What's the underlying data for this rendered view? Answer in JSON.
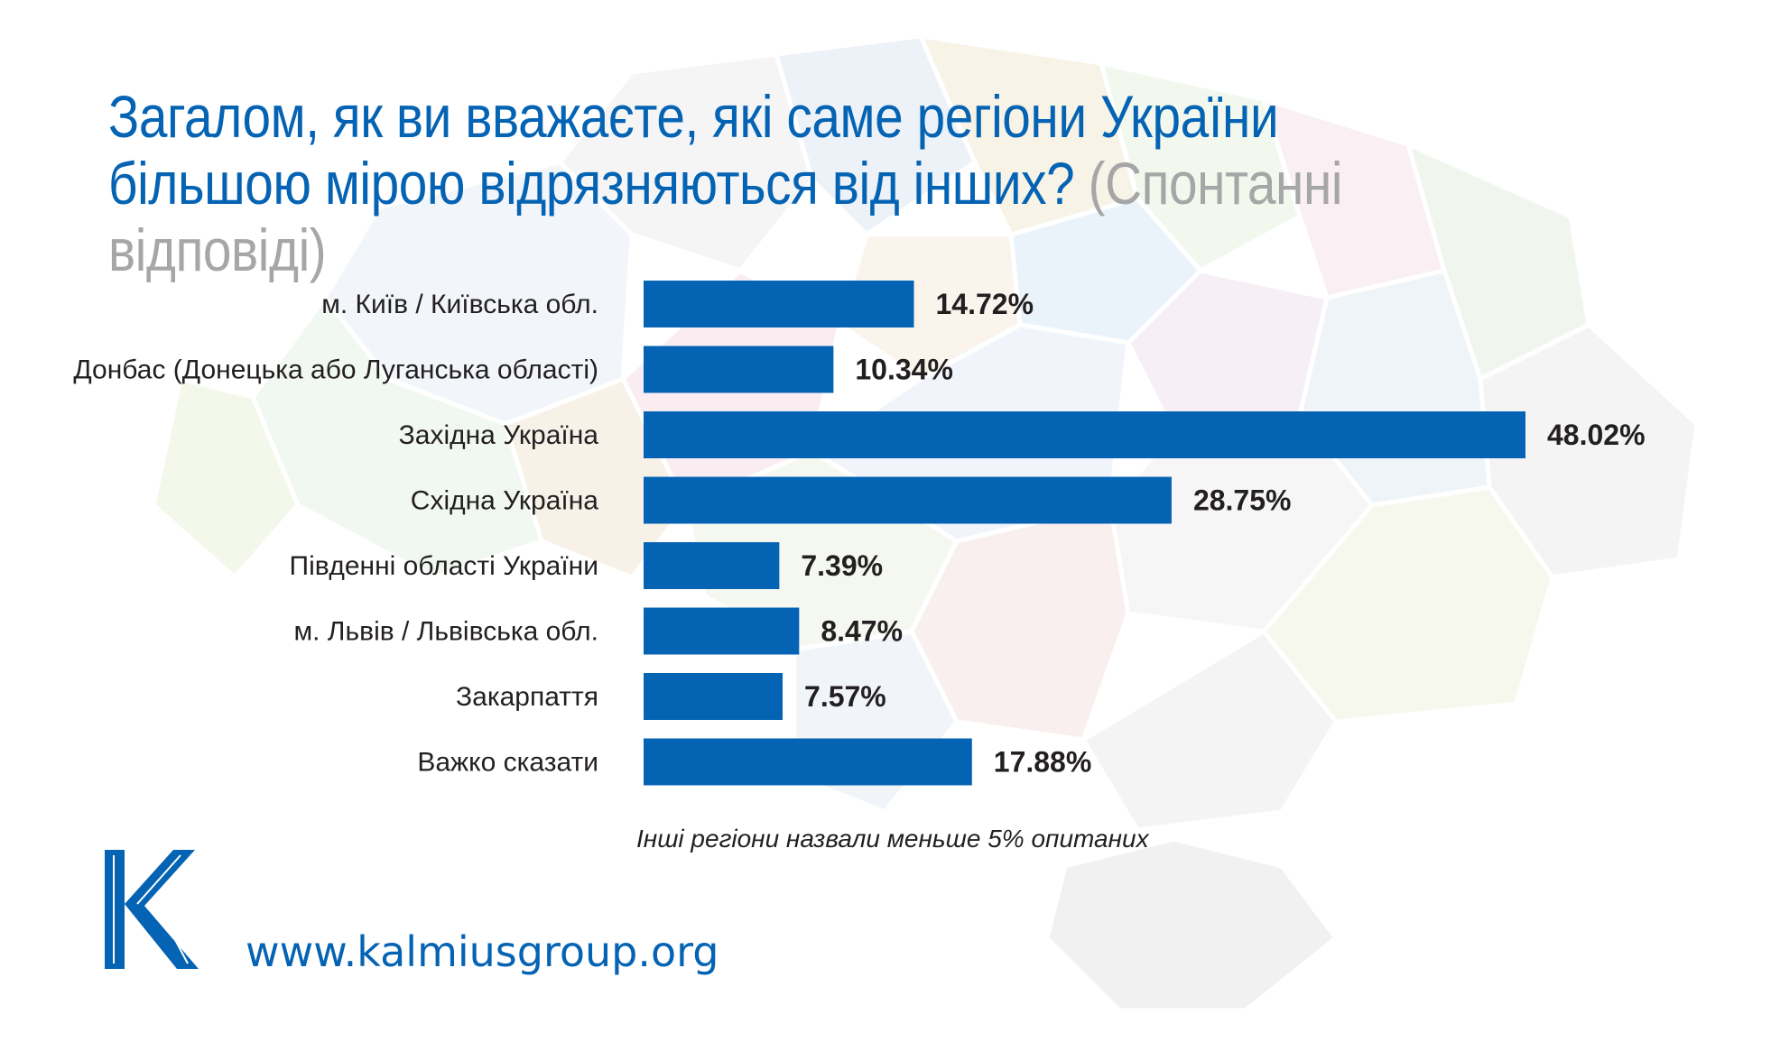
{
  "title": "Загалом, як ви вважаєте, які саме регіони України більшою мірою відрязняються від інших?",
  "subtitle": "(Спонтанні відповіді)",
  "chart_data": {
    "type": "bar",
    "orientation": "horizontal",
    "categories": [
      "м. Київ / Київська обл.",
      "Донбас (Донецька або Луганська області)",
      "Західна Україна",
      "Східна Україна",
      "Південні області України",
      "м. Львів / Львівська обл.",
      "Закарпаття",
      "Важко сказати"
    ],
    "values": [
      14.72,
      10.34,
      48.02,
      28.75,
      7.39,
      8.47,
      7.57,
      17.88
    ],
    "value_labels": [
      "14.72%",
      "10.34%",
      "48.02%",
      "28.75%",
      "7.39%",
      "8.47%",
      "7.57%",
      "17.88%"
    ],
    "xlim": [
      0,
      48.02
    ],
    "bar_color": "#0563b3",
    "grid": false,
    "legend": "none"
  },
  "note": "Інші регіони назвали меньше 5% опитаних",
  "logo": {
    "letter": "K",
    "color": "#0563b3"
  },
  "url": "www.kalmiusgroup.org",
  "colors": {
    "accent": "#0563b3",
    "subtitle": "#a6a6a6",
    "text": "#231f20"
  }
}
